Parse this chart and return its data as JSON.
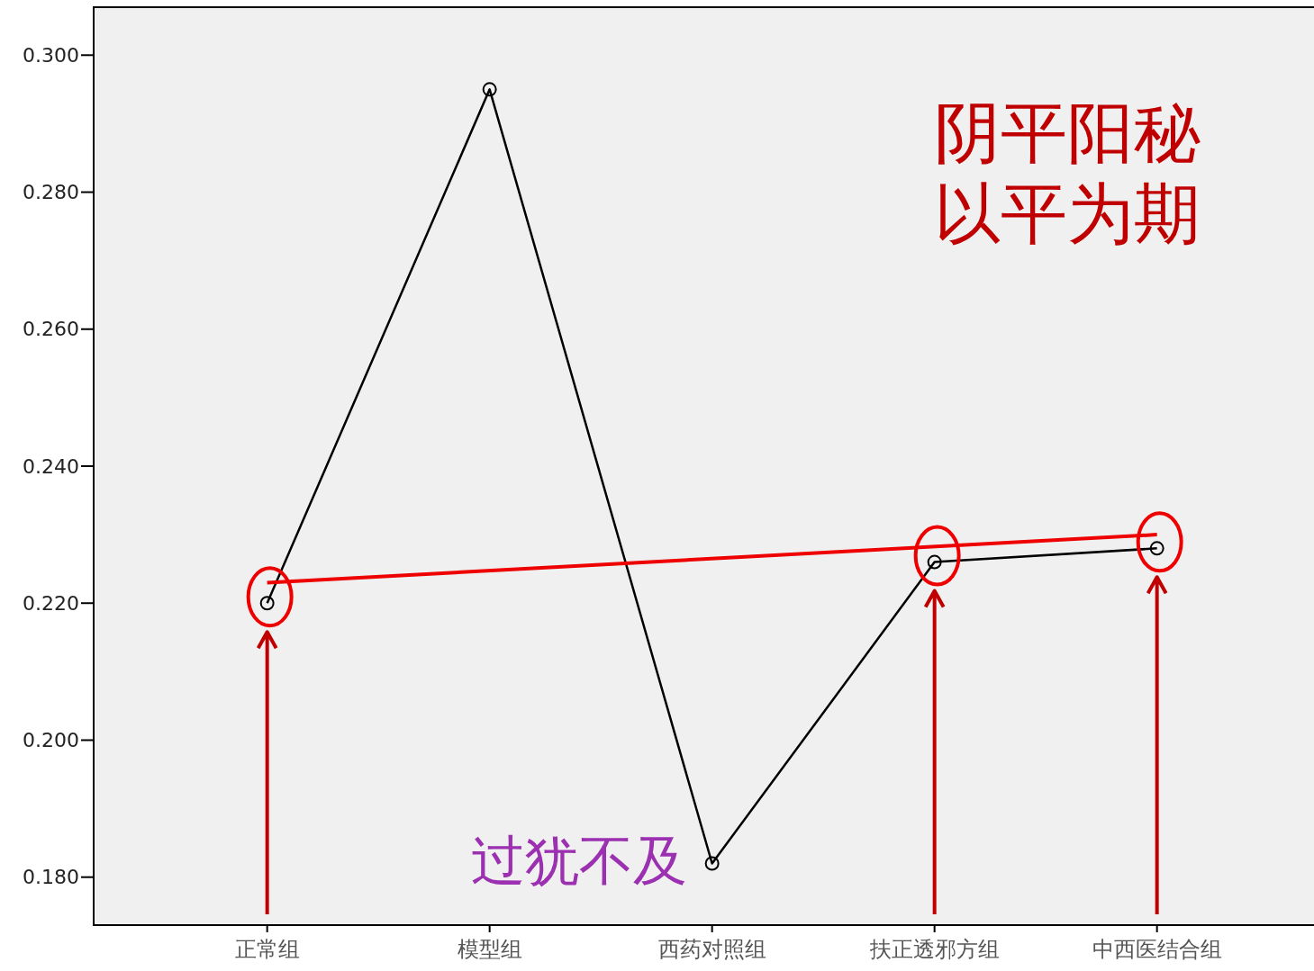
{
  "chart_data": {
    "type": "line",
    "categories": [
      "正常组",
      "模型组",
      "西药对照组",
      "扶正透邪方组",
      "中西医结合组"
    ],
    "series": [
      {
        "color": "#000000",
        "values": [
          0.22,
          0.295,
          0.182,
          0.226,
          0.228
        ]
      },
      {
        "type": "line",
        "color": "#ee0000",
        "marker": "none",
        "values": [
          0.223,
          null,
          null,
          null,
          0.23
        ]
      }
    ],
    "ylim": [
      0.173,
      0.307
    ],
    "yticks": [
      {
        "value": 0.18,
        "label": "0.180"
      },
      {
        "value": 0.2,
        "label": "0.200"
      },
      {
        "value": 0.22,
        "label": "0.220"
      },
      {
        "value": 0.24,
        "label": "0.240"
      },
      {
        "value": 0.26,
        "label": "0.260"
      },
      {
        "value": 0.28,
        "label": "0.280"
      },
      {
        "value": 0.3,
        "label": "0.300"
      }
    ],
    "marker": "circle",
    "line_style": "solid",
    "annotations": [
      "阴平阳秘",
      "以平为期",
      "过犹不及"
    ]
  }
}
